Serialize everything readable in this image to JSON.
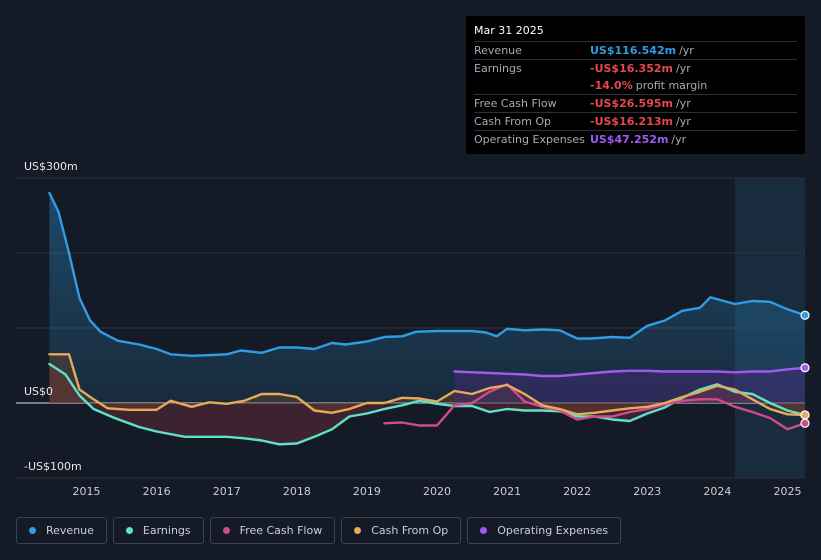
{
  "tooltip": {
    "date": "Mar 31 2025",
    "rows": [
      {
        "label": "Revenue",
        "value": "US$116.542m",
        "suffix": "/yr",
        "color": "#2f9de3"
      },
      {
        "label": "Earnings",
        "value": "-US$16.352m",
        "suffix": "/yr",
        "color": "#e5484d"
      },
      {
        "label": "",
        "value": "-14.0%",
        "suffix": "profit margin",
        "color": "#e5484d"
      },
      {
        "label": "Free Cash Flow",
        "value": "-US$26.595m",
        "suffix": "/yr",
        "color": "#e5484d"
      },
      {
        "label": "Cash From Op",
        "value": "-US$16.213m",
        "suffix": "/yr",
        "color": "#e5484d"
      },
      {
        "label": "Operating Expenses",
        "value": "US$47.252m",
        "suffix": "/yr",
        "color": "#a259f0"
      }
    ]
  },
  "legend": [
    {
      "label": "Revenue",
      "color": "#2f9de3"
    },
    {
      "label": "Earnings",
      "color": "#5ee3c8"
    },
    {
      "label": "Free Cash Flow",
      "color": "#d44a86"
    },
    {
      "label": "Cash From Op",
      "color": "#e8a95a"
    },
    {
      "label": "Operating Expenses",
      "color": "#a259f0"
    }
  ],
  "chart_data": {
    "type": "line",
    "title": "",
    "y_unit": "US$ m",
    "ylim": [
      -100,
      300
    ],
    "y_axis_labels": [
      "US$300m",
      "US$0",
      "-US$100m"
    ],
    "x_ticks": [
      "2015",
      "2016",
      "2017",
      "2018",
      "2019",
      "2020",
      "2021",
      "2022",
      "2023",
      "2024",
      "2025"
    ],
    "xlim": [
      2014.45,
      2025.25
    ],
    "forecast_shade_start": 2024.25,
    "series": [
      {
        "name": "Revenue",
        "color": "#2f9de3",
        "fill": true,
        "points": [
          [
            2014.47,
            280
          ],
          [
            2014.6,
            255
          ],
          [
            2014.75,
            200
          ],
          [
            2014.9,
            140
          ],
          [
            2015.05,
            110
          ],
          [
            2015.2,
            95
          ],
          [
            2015.45,
            83
          ],
          [
            2015.75,
            78
          ],
          [
            2016.0,
            72
          ],
          [
            2016.2,
            65
          ],
          [
            2016.5,
            63
          ],
          [
            2016.8,
            64
          ],
          [
            2017.0,
            65
          ],
          [
            2017.2,
            70
          ],
          [
            2017.5,
            67
          ],
          [
            2017.75,
            74
          ],
          [
            2018.0,
            74
          ],
          [
            2018.25,
            72
          ],
          [
            2018.5,
            80
          ],
          [
            2018.7,
            78
          ],
          [
            2019.0,
            82
          ],
          [
            2019.25,
            88
          ],
          [
            2019.5,
            89
          ],
          [
            2019.7,
            95
          ],
          [
            2020.0,
            96
          ],
          [
            2020.5,
            96
          ],
          [
            2020.7,
            94
          ],
          [
            2020.85,
            89
          ],
          [
            2021.0,
            99
          ],
          [
            2021.25,
            97
          ],
          [
            2021.5,
            98
          ],
          [
            2021.75,
            97
          ],
          [
            2022.0,
            86
          ],
          [
            2022.2,
            86
          ],
          [
            2022.5,
            88
          ],
          [
            2022.75,
            87
          ],
          [
            2023.0,
            103
          ],
          [
            2023.25,
            110
          ],
          [
            2023.5,
            123
          ],
          [
            2023.75,
            127
          ],
          [
            2023.9,
            141
          ],
          [
            2024.25,
            132
          ],
          [
            2024.5,
            136
          ],
          [
            2024.75,
            135
          ],
          [
            2025.0,
            125
          ],
          [
            2025.25,
            117
          ]
        ]
      },
      {
        "name": "Earnings",
        "color": "#5ee3c8",
        "fill": true,
        "points": [
          [
            2014.47,
            52
          ],
          [
            2014.7,
            38
          ],
          [
            2014.9,
            10
          ],
          [
            2015.1,
            -8
          ],
          [
            2015.4,
            -20
          ],
          [
            2015.75,
            -32
          ],
          [
            2016.0,
            -38
          ],
          [
            2016.4,
            -45
          ],
          [
            2016.75,
            -45
          ],
          [
            2017.0,
            -45
          ],
          [
            2017.25,
            -47
          ],
          [
            2017.5,
            -50
          ],
          [
            2017.75,
            -55
          ],
          [
            2018.0,
            -54
          ],
          [
            2018.25,
            -45
          ],
          [
            2018.5,
            -35
          ],
          [
            2018.75,
            -18
          ],
          [
            2019.0,
            -14
          ],
          [
            2019.25,
            -8
          ],
          [
            2019.5,
            -3
          ],
          [
            2019.75,
            3
          ],
          [
            2020.0,
            -1
          ],
          [
            2020.25,
            -4
          ],
          [
            2020.5,
            -4
          ],
          [
            2020.75,
            -12
          ],
          [
            2021.0,
            -8
          ],
          [
            2021.25,
            -10
          ],
          [
            2021.5,
            -10
          ],
          [
            2021.75,
            -11
          ],
          [
            2022.0,
            -18
          ],
          [
            2022.25,
            -18
          ],
          [
            2022.5,
            -22
          ],
          [
            2022.75,
            -24
          ],
          [
            2023.0,
            -14
          ],
          [
            2023.25,
            -6
          ],
          [
            2023.5,
            7
          ],
          [
            2023.75,
            18
          ],
          [
            2024.0,
            25
          ],
          [
            2024.25,
            15
          ],
          [
            2024.5,
            12
          ],
          [
            2024.75,
            0
          ],
          [
            2025.0,
            -10
          ],
          [
            2025.25,
            -16
          ]
        ]
      },
      {
        "name": "Free Cash Flow",
        "color": "#d44a86",
        "fill": false,
        "points": [
          [
            2019.25,
            -27
          ],
          [
            2019.5,
            -26
          ],
          [
            2019.75,
            -30
          ],
          [
            2020.0,
            -30
          ],
          [
            2020.25,
            -3
          ],
          [
            2020.5,
            0
          ],
          [
            2020.75,
            15
          ],
          [
            2021.0,
            25
          ],
          [
            2021.25,
            2
          ],
          [
            2021.5,
            -5
          ],
          [
            2021.75,
            -10
          ],
          [
            2022.0,
            -22
          ],
          [
            2022.25,
            -18
          ],
          [
            2022.5,
            -18
          ],
          [
            2022.75,
            -12
          ],
          [
            2023.0,
            -8
          ],
          [
            2023.25,
            -2
          ],
          [
            2023.5,
            3
          ],
          [
            2023.75,
            5
          ],
          [
            2024.0,
            5
          ],
          [
            2024.25,
            -5
          ],
          [
            2024.5,
            -12
          ],
          [
            2024.75,
            -20
          ],
          [
            2025.0,
            -35
          ],
          [
            2025.25,
            -27
          ]
        ]
      },
      {
        "name": "Cash From Op",
        "color": "#e8a95a",
        "fill": true,
        "points": [
          [
            2014.47,
            65
          ],
          [
            2014.6,
            65
          ],
          [
            2014.75,
            65
          ],
          [
            2014.9,
            18
          ],
          [
            2015.1,
            5
          ],
          [
            2015.3,
            -7
          ],
          [
            2015.6,
            -9
          ],
          [
            2016.0,
            -9
          ],
          [
            2016.2,
            3
          ],
          [
            2016.5,
            -5
          ],
          [
            2016.75,
            1
          ],
          [
            2017.0,
            -1
          ],
          [
            2017.25,
            3
          ],
          [
            2017.5,
            12
          ],
          [
            2017.75,
            12
          ],
          [
            2018.0,
            8
          ],
          [
            2018.25,
            -10
          ],
          [
            2018.5,
            -13
          ],
          [
            2018.75,
            -8
          ],
          [
            2019.0,
            0
          ],
          [
            2019.25,
            0
          ],
          [
            2019.5,
            7
          ],
          [
            2019.75,
            6
          ],
          [
            2020.0,
            2
          ],
          [
            2020.25,
            16
          ],
          [
            2020.5,
            12
          ],
          [
            2020.75,
            20
          ],
          [
            2021.0,
            24
          ],
          [
            2021.25,
            12
          ],
          [
            2021.5,
            -3
          ],
          [
            2021.75,
            -8
          ],
          [
            2022.0,
            -15
          ],
          [
            2022.25,
            -13
          ],
          [
            2022.5,
            -10
          ],
          [
            2022.75,
            -7
          ],
          [
            2023.0,
            -5
          ],
          [
            2023.25,
            0
          ],
          [
            2023.5,
            8
          ],
          [
            2023.75,
            15
          ],
          [
            2024.0,
            23
          ],
          [
            2024.25,
            18
          ],
          [
            2024.5,
            5
          ],
          [
            2024.75,
            -8
          ],
          [
            2025.0,
            -15
          ],
          [
            2025.25,
            -16
          ]
        ]
      },
      {
        "name": "Operating Expenses",
        "color": "#a259f0",
        "fill": true,
        "points": [
          [
            2020.25,
            42
          ],
          [
            2020.5,
            41
          ],
          [
            2020.75,
            40
          ],
          [
            2021.0,
            39
          ],
          [
            2021.25,
            38
          ],
          [
            2021.5,
            36
          ],
          [
            2021.75,
            36
          ],
          [
            2022.0,
            38
          ],
          [
            2022.25,
            40
          ],
          [
            2022.5,
            42
          ],
          [
            2022.75,
            43
          ],
          [
            2023.0,
            43
          ],
          [
            2023.25,
            42
          ],
          [
            2023.5,
            42
          ],
          [
            2023.75,
            42
          ],
          [
            2024.0,
            42
          ],
          [
            2024.25,
            41
          ],
          [
            2024.5,
            42
          ],
          [
            2024.75,
            42
          ],
          [
            2025.0,
            45
          ],
          [
            2025.25,
            47
          ]
        ]
      }
    ]
  }
}
